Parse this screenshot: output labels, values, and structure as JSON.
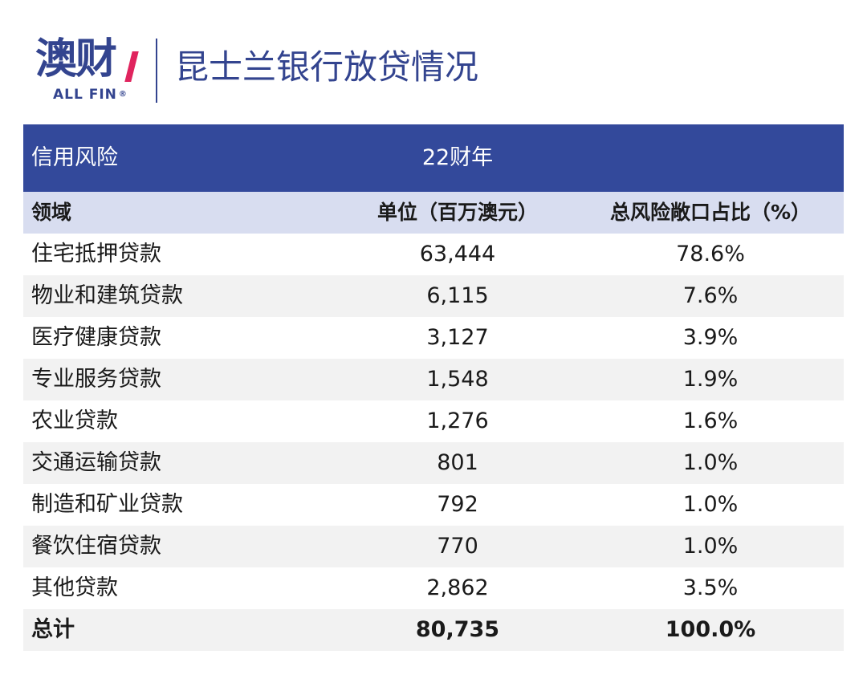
{
  "logo": {
    "mark": "澳财",
    "sub": "ALL FIN",
    "reg": "®"
  },
  "title": "昆士兰银行放贷情况",
  "band": {
    "left": "信用风险",
    "year": "22财年"
  },
  "columns": {
    "domain": "领域",
    "amount": "单位（百万澳元）",
    "share": "总风险敞口占比（%）"
  },
  "rows": [
    {
      "domain": "住宅抵押贷款",
      "amount": "63,444",
      "share": "78.6%"
    },
    {
      "domain": "物业和建筑贷款",
      "amount": "6,115",
      "share": "7.6%"
    },
    {
      "domain": "医疗健康贷款",
      "amount": "3,127",
      "share": "3.9%"
    },
    {
      "domain": "专业服务贷款",
      "amount": "1,548",
      "share": "1.9%"
    },
    {
      "domain": "农业贷款",
      "amount": "1,276",
      "share": "1.6%"
    },
    {
      "domain": "交通运输贷款",
      "amount": "801",
      "share": "1.0%"
    },
    {
      "domain": "制造和矿业贷款",
      "amount": "792",
      "share": "1.0%"
    },
    {
      "domain": "餐饮住宿贷款",
      "amount": "770",
      "share": "1.0%"
    },
    {
      "domain": "其他贷款",
      "amount": "2,862",
      "share": "3.5%"
    }
  ],
  "total": {
    "domain": "总计",
    "amount": "80,735",
    "share": "100.0%"
  },
  "colors": {
    "brand": "#33448f",
    "band": "#33499b",
    "column_header": "#d8ddf0",
    "stripe": "#f2f2f2",
    "accent": "#e0245e"
  }
}
